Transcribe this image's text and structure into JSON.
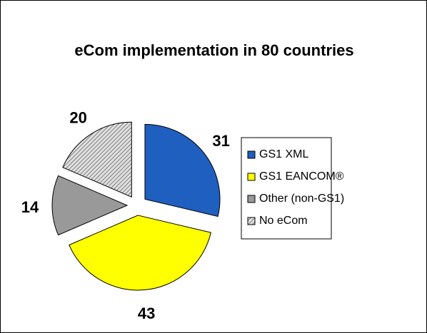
{
  "chart_data": {
    "type": "pie",
    "title": "eCom implementation in 80 countries",
    "categories": [
      "GS1 XML",
      "GS1 EANCOM®",
      "Other (non-GS1)",
      "No eCom"
    ],
    "values": [
      31,
      43,
      14,
      20
    ],
    "colors": [
      "#1f5fbf",
      "#ffff00",
      "#999999",
      "#d0d0d0"
    ],
    "hatch": [
      false,
      false,
      false,
      true
    ],
    "legend": "right"
  }
}
